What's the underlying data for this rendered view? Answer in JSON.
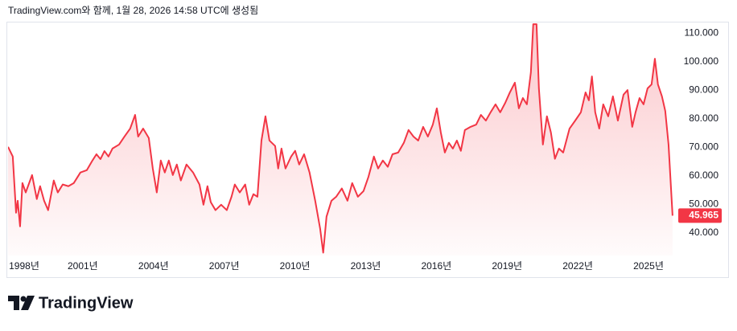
{
  "header": "TradingView.com와 함께, 1월 28, 2026 14:58 UTC에 생성됨",
  "brand": "TradingView",
  "chart_data": {
    "type": "area",
    "grid": false,
    "xlim": [
      1997.83,
      2026.16
    ],
    "ylim": [
      32,
      113.7
    ],
    "xticks": [
      {
        "value": 1998,
        "label": "1998년"
      },
      {
        "value": 2001,
        "label": "2001년"
      },
      {
        "value": 2004,
        "label": "2004년"
      },
      {
        "value": 2007,
        "label": "2007년"
      },
      {
        "value": 2010,
        "label": "2010년"
      },
      {
        "value": 2013,
        "label": "2013년"
      },
      {
        "value": 2016,
        "label": "2016년"
      },
      {
        "value": 2019,
        "label": "2019년"
      },
      {
        "value": 2022,
        "label": "2022년"
      },
      {
        "value": 2025,
        "label": "2025년"
      }
    ],
    "yticks": [
      {
        "value": 40,
        "label": "40.000"
      },
      {
        "value": 50,
        "label": "50.000"
      },
      {
        "value": 60,
        "label": "60.000"
      },
      {
        "value": 70,
        "label": "70.000"
      },
      {
        "value": 80,
        "label": "80.000"
      },
      {
        "value": 90,
        "label": "90.000"
      },
      {
        "value": 100,
        "label": "100.000"
      },
      {
        "value": 110,
        "label": "110.000"
      }
    ],
    "x": [
      1997.83,
      1998.03,
      1998.17,
      1998.24,
      1998.34,
      1998.44,
      1998.58,
      1998.85,
      1999.05,
      1999.19,
      1999.36,
      1999.53,
      1999.77,
      1999.94,
      2000.15,
      2000.39,
      2000.62,
      2000.9,
      2001.17,
      2001.41,
      2001.58,
      2001.75,
      2001.92,
      2002.09,
      2002.26,
      2002.54,
      2002.77,
      2003.01,
      2003.22,
      2003.35,
      2003.56,
      2003.8,
      2003.97,
      2004.14,
      2004.31,
      2004.48,
      2004.65,
      2004.82,
      2004.99,
      2005.16,
      2005.4,
      2005.68,
      2005.95,
      2006.12,
      2006.29,
      2006.43,
      2006.63,
      2006.87,
      2007.11,
      2007.31,
      2007.45,
      2007.66,
      2007.89,
      2008.06,
      2008.24,
      2008.41,
      2008.58,
      2008.75,
      2008.92,
      2009.16,
      2009.29,
      2009.43,
      2009.6,
      2009.84,
      2010.01,
      2010.18,
      2010.39,
      2010.62,
      2010.86,
      2011.07,
      2011.2,
      2011.34,
      2011.55,
      2011.75,
      2011.99,
      2012.23,
      2012.43,
      2012.67,
      2012.91,
      2013.12,
      2013.35,
      2013.53,
      2013.73,
      2013.94,
      2014.14,
      2014.38,
      2014.62,
      2014.82,
      2015.03,
      2015.23,
      2015.44,
      2015.64,
      2015.85,
      2016.02,
      2016.19,
      2016.36,
      2016.53,
      2016.7,
      2016.87,
      2017.04,
      2017.21,
      2017.45,
      2017.69,
      2017.89,
      2018.1,
      2018.3,
      2018.51,
      2018.71,
      2018.92,
      2019.12,
      2019.33,
      2019.5,
      2019.67,
      2019.84,
      2020.01,
      2020.11,
      2020.25,
      2020.35,
      2020.52,
      2020.69,
      2020.86,
      2021.03,
      2021.2,
      2021.38,
      2021.65,
      2021.89,
      2022.13,
      2022.33,
      2022.47,
      2022.6,
      2022.74,
      2022.91,
      2023.08,
      2023.29,
      2023.49,
      2023.7,
      2023.94,
      2024.11,
      2024.31,
      2024.45,
      2024.62,
      2024.79,
      2024.96,
      2025.13,
      2025.27,
      2025.4,
      2025.57,
      2025.71,
      2025.85,
      2026.02
    ],
    "series": [
      {
        "color": "#f23645",
        "values": [
          70.1,
          66.7,
          47.0,
          51.2,
          42.2,
          57.4,
          54.1,
          60.2,
          51.8,
          56.3,
          51.2,
          47.9,
          58.3,
          54.1,
          56.9,
          56.3,
          57.4,
          61.1,
          61.9,
          65.3,
          67.5,
          65.8,
          68.6,
          66.7,
          69.5,
          70.9,
          73.7,
          76.5,
          81.3,
          73.7,
          76.5,
          73.2,
          62.5,
          54.1,
          65.3,
          61.1,
          65.3,
          60.2,
          63.9,
          58.3,
          63.9,
          61.1,
          56.9,
          49.8,
          56.3,
          50.7,
          47.9,
          49.8,
          47.9,
          52.6,
          56.9,
          54.1,
          56.9,
          49.8,
          53.5,
          52.6,
          72.3,
          80.8,
          72.3,
          70.4,
          62.5,
          69.5,
          62.5,
          66.7,
          68.7,
          63.9,
          67.5,
          61.1,
          51.2,
          41.4,
          33.0,
          45.6,
          51.2,
          52.6,
          55.5,
          51.2,
          57.4,
          52.6,
          54.6,
          59.6,
          66.7,
          62.5,
          65.3,
          63.1,
          67.5,
          68.1,
          71.5,
          76.0,
          73.7,
          72.3,
          77.1,
          73.7,
          77.9,
          83.6,
          75.1,
          68.1,
          71.5,
          69.5,
          72.3,
          68.7,
          76.0,
          77.1,
          77.9,
          81.3,
          79.3,
          82.2,
          85.0,
          82.2,
          85.5,
          89.2,
          92.6,
          83.6,
          87.2,
          85.0,
          96.2,
          113.1,
          113.1,
          90.6,
          70.9,
          80.8,
          75.1,
          65.9,
          69.5,
          68.1,
          76.5,
          79.3,
          82.2,
          89.2,
          86.4,
          94.8,
          82.2,
          76.5,
          85.0,
          80.8,
          87.8,
          79.3,
          88.4,
          90.0,
          77.1,
          82.2,
          87.2,
          85.0,
          90.6,
          92.0,
          101.0,
          92.0,
          87.8,
          82.7,
          70.9,
          45.965
        ]
      }
    ]
  }
}
